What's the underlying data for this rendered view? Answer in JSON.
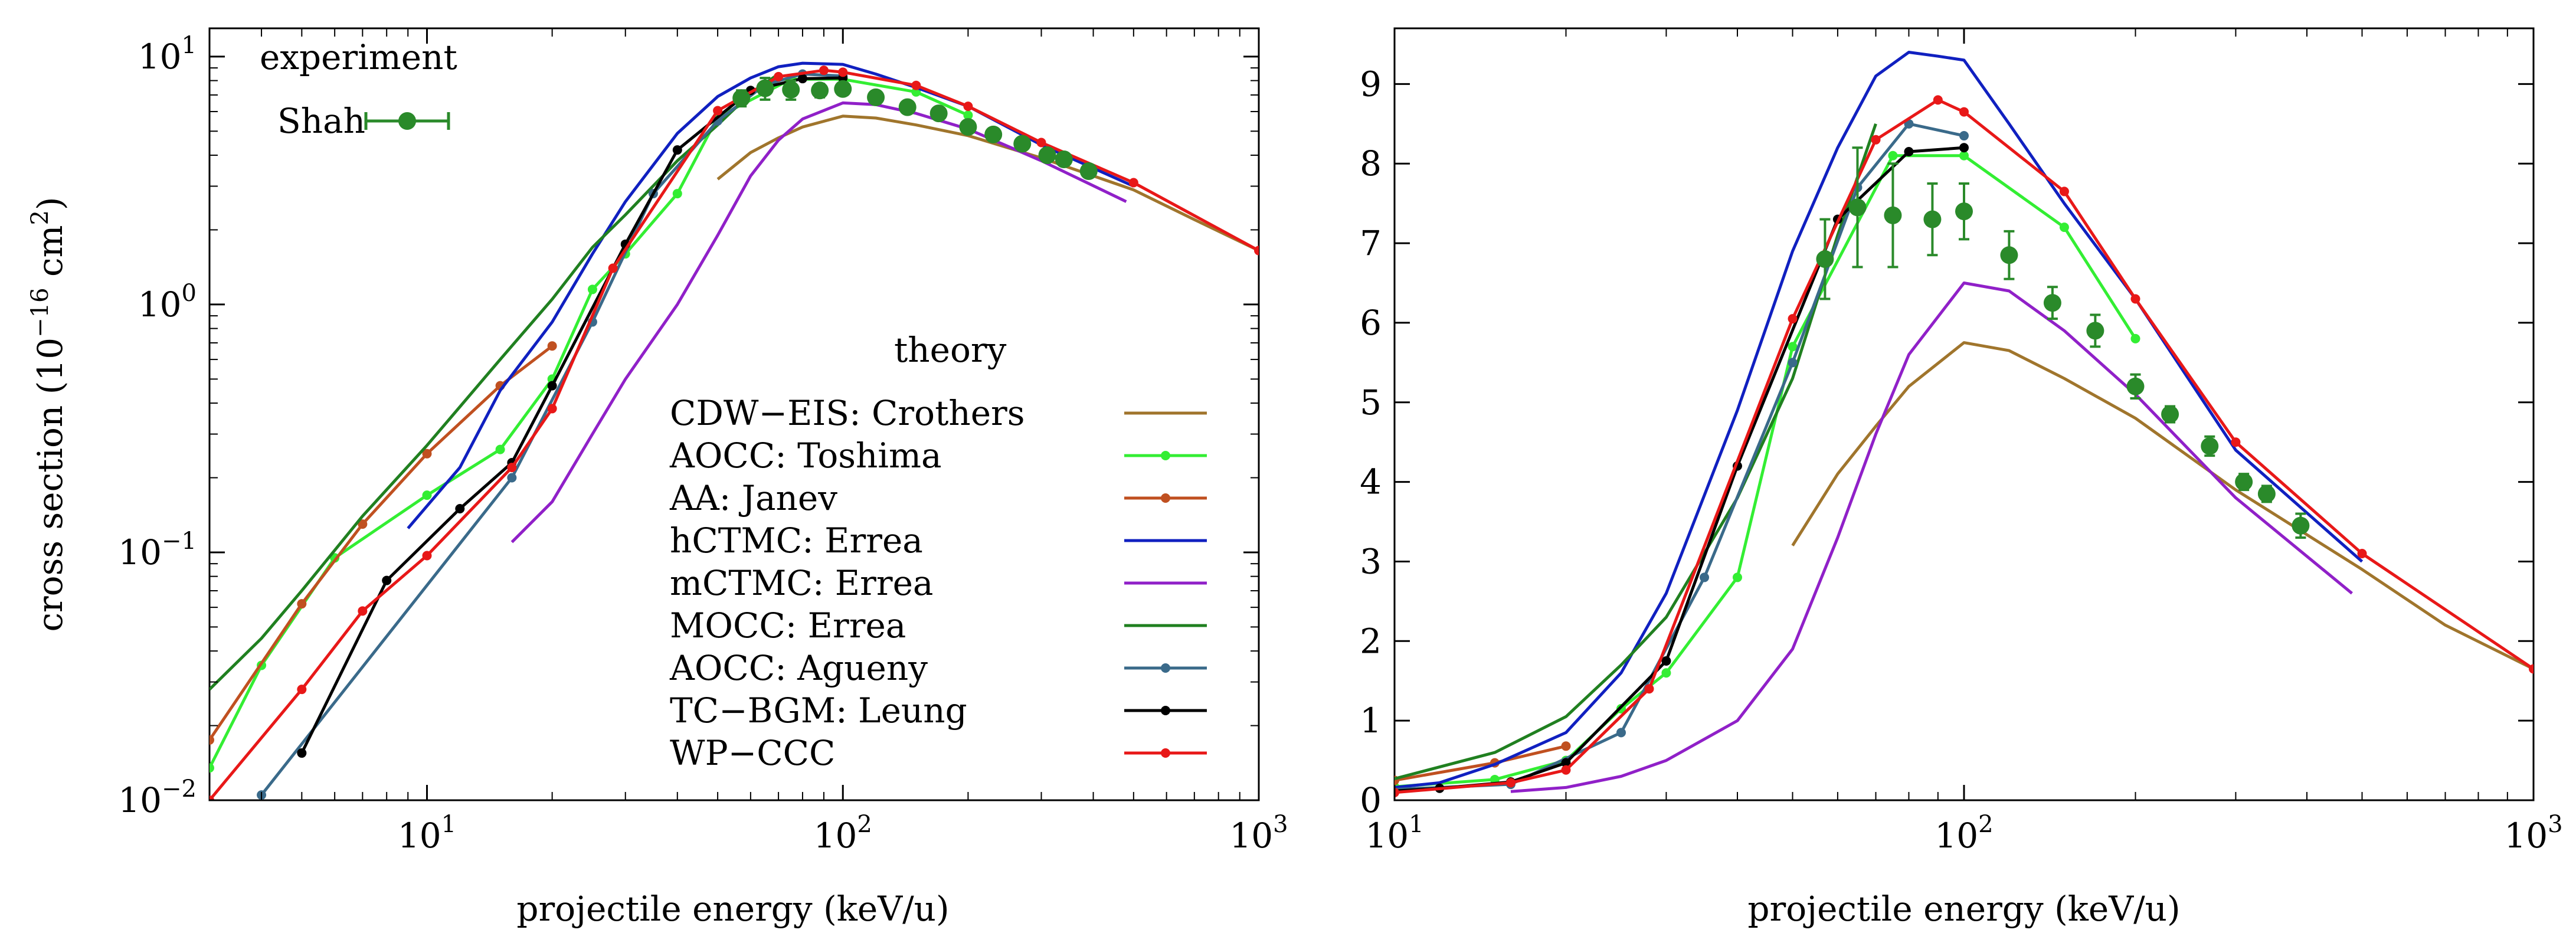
{
  "figure": {
    "ylabel_main": "cross section (10",
    "ylabel_exp": "−16",
    "ylabel_unit": " cm",
    "ylabel_unit_exp": "2",
    "ylabel_close": ")",
    "left_legend": {
      "experiment_header": "experiment",
      "theory_header": "theory"
    }
  },
  "colors": {
    "Crothers": "#a0752c",
    "Toshima": "#33ee33",
    "Janev": "#c05020",
    "hErrea": "#1020c0",
    "mErrea": "#9020c8",
    "MOCCErrea": "#208020",
    "Agueny": "#3a6a8a",
    "Leung": "#000000",
    "WPCCC": "#e81818",
    "Shah": "#2a8a2a"
  },
  "chart_data": [
    {
      "type": "line",
      "xlabel": "projectile energy (keV/u)",
      "ylabel": "cross section (10^-16 cm^2)",
      "xscale": "log",
      "yscale": "log",
      "xlim": [
        3,
        1000
      ],
      "ylim": [
        0.01,
        13
      ],
      "xticks": [
        {
          "base": "10",
          "exp": "1",
          "value": 10
        },
        {
          "base": "10",
          "exp": "2",
          "value": 100
        },
        {
          "base": "10",
          "exp": "3",
          "value": 1000
        }
      ],
      "yticks": [
        {
          "base": "10",
          "exp": "−2",
          "value": 0.01
        },
        {
          "base": "10",
          "exp": "−1",
          "value": 0.1
        },
        {
          "base": "10",
          "exp": "0",
          "value": 1
        },
        {
          "base": "10",
          "exp": "1",
          "value": 10
        }
      ],
      "grid": false,
      "legend_position": "top-left (experiment), center (theory)",
      "series": [
        {
          "name": "CDW−EIS: Crothers",
          "color": "#a0752c",
          "markers": false,
          "x": [
            50,
            60,
            70,
            80,
            100,
            120,
            150,
            200,
            300,
            500,
            700,
            1000
          ],
          "y": [
            3.2,
            4.1,
            4.7,
            5.2,
            5.75,
            5.65,
            5.3,
            4.8,
            3.9,
            2.9,
            2.2,
            1.65
          ]
        },
        {
          "name": "AOCC: Toshima",
          "color": "#33ee33",
          "markers": true,
          "x": [
            3,
            4,
            6,
            10,
            15,
            20,
            25,
            30,
            40,
            50,
            75,
            100,
            150,
            200
          ],
          "y": [
            0.0135,
            0.035,
            0.095,
            0.17,
            0.26,
            0.5,
            1.15,
            1.6,
            2.8,
            5.7,
            8.1,
            8.1,
            7.2,
            5.8
          ]
        },
        {
          "name": "AA: Janev",
          "color": "#c05020",
          "markers": true,
          "x": [
            3,
            5,
            7,
            10,
            15,
            20
          ],
          "y": [
            0.0175,
            0.062,
            0.13,
            0.25,
            0.47,
            0.68
          ]
        },
        {
          "name": "hCTMC: Errea",
          "color": "#1020c0",
          "markers": false,
          "x": [
            9,
            12,
            15,
            20,
            25,
            30,
            40,
            50,
            60,
            70,
            80,
            90,
            100,
            120,
            150,
            200,
            300,
            500
          ],
          "y": [
            0.125,
            0.22,
            0.45,
            0.85,
            1.6,
            2.6,
            4.9,
            6.9,
            8.2,
            9.1,
            9.4,
            9.35,
            9.3,
            8.5,
            7.5,
            6.3,
            4.4,
            3.0
          ]
        },
        {
          "name": "mCTMC: Errea",
          "color": "#9020c8",
          "markers": false,
          "x": [
            16,
            20,
            25,
            30,
            40,
            50,
            60,
            70,
            80,
            100,
            120,
            150,
            200,
            300,
            480
          ],
          "y": [
            0.11,
            0.16,
            0.3,
            0.5,
            1.0,
            1.9,
            3.3,
            4.6,
            5.6,
            6.5,
            6.4,
            5.9,
            5.1,
            3.8,
            2.6
          ]
        },
        {
          "name": "MOCC: Errea",
          "color": "#208020",
          "markers": false,
          "x": [
            3,
            4,
            5,
            7,
            10,
            15,
            20,
            25,
            30,
            40,
            50,
            60,
            70
          ],
          "y": [
            0.028,
            0.045,
            0.07,
            0.14,
            0.27,
            0.6,
            1.05,
            1.7,
            2.3,
            3.8,
            5.3,
            7.1,
            8.5
          ]
        },
        {
          "name": "AOCC: Agueny",
          "color": "#3a6a8a",
          "markers": true,
          "x": [
            4,
            16,
            25,
            35,
            50,
            65,
            80,
            100
          ],
          "y": [
            0.0105,
            0.2,
            0.85,
            2.8,
            5.5,
            7.7,
            8.5,
            8.35
          ]
        },
        {
          "name": "TC−BGM: Leung",
          "color": "#000000",
          "markers": true,
          "x": [
            5,
            8,
            12,
            16,
            20,
            30,
            40,
            60,
            80,
            100
          ],
          "y": [
            0.0155,
            0.077,
            0.15,
            0.23,
            0.47,
            1.75,
            4.2,
            7.3,
            8.15,
            8.2
          ]
        },
        {
          "name": "WP−CCC",
          "color": "#e81818",
          "markers": true,
          "x": [
            3,
            5,
            7,
            10,
            16,
            20,
            28,
            50,
            70,
            90,
            100,
            150,
            200,
            300,
            500,
            1000
          ],
          "y": [
            0.01,
            0.028,
            0.058,
            0.097,
            0.22,
            0.38,
            1.4,
            6.05,
            8.3,
            8.8,
            8.65,
            7.65,
            6.3,
            4.5,
            3.1,
            1.65
          ]
        },
        {
          "name": "Shah",
          "type": "scatter",
          "color": "#2a8a2a",
          "x": [
            57,
            65,
            75,
            88,
            100,
            120,
            143,
            170,
            200,
            230,
            270,
            310,
            340,
            390
          ],
          "y": [
            6.8,
            7.45,
            7.35,
            7.3,
            7.4,
            6.85,
            6.25,
            5.9,
            5.2,
            4.85,
            4.45,
            4.0,
            3.85,
            3.45
          ],
          "yerr": [
            0.5,
            0.75,
            0.65,
            0.45,
            0.35,
            0.3,
            0.2,
            0.2,
            0.15,
            0.1,
            0.12,
            0.1,
            0.1,
            0.15
          ]
        }
      ]
    },
    {
      "type": "line",
      "xlabel": "projectile energy (keV/u)",
      "ylabel": "",
      "xscale": "log",
      "yscale": "linear",
      "xlim": [
        10,
        1000
      ],
      "ylim": [
        0,
        9.7
      ],
      "xticks": [
        {
          "base": "10",
          "exp": "1",
          "value": 10
        },
        {
          "base": "10",
          "exp": "2",
          "value": 100
        },
        {
          "base": "10",
          "exp": "3",
          "value": 1000
        }
      ],
      "yticks": [
        {
          "label": "0",
          "value": 0
        },
        {
          "label": "1",
          "value": 1
        },
        {
          "label": "2",
          "value": 2
        },
        {
          "label": "3",
          "value": 3
        },
        {
          "label": "4",
          "value": 4
        },
        {
          "label": "5",
          "value": 5
        },
        {
          "label": "6",
          "value": 6
        },
        {
          "label": "7",
          "value": 7
        },
        {
          "label": "8",
          "value": 8
        },
        {
          "label": "9",
          "value": 9
        }
      ],
      "grid": false,
      "series_same_as": "panel 1"
    }
  ]
}
